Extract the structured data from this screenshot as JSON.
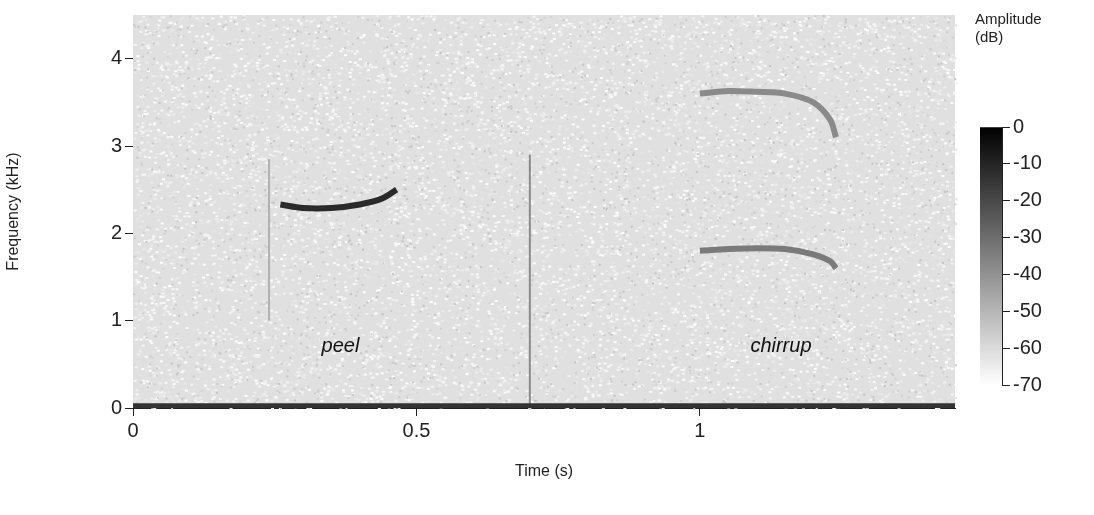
{
  "chart_data": {
    "type": "spectrogram",
    "x_label": "Time (s)",
    "y_label": "Frequency (kHz)",
    "xlim": [
      0,
      1.45
    ],
    "xticks": [
      0,
      0.5,
      1
    ],
    "ylim": [
      0,
      4.5
    ],
    "yticks": [
      0,
      1,
      2,
      3,
      4
    ],
    "grid": false,
    "series": [
      {
        "x": [
          0,
          1.45
        ],
        "values": [
          0.02,
          0.02
        ],
        "color": "#333333"
      },
      {
        "x": [
          0.24,
          0.24
        ],
        "values": [
          1.0,
          2.85
        ],
        "color": "#b0b0b0"
      },
      {
        "x": [
          0.26,
          0.3,
          0.35,
          0.4,
          0.44,
          0.465
        ],
        "values": [
          2.33,
          2.29,
          2.29,
          2.33,
          2.4,
          2.5
        ],
        "color": "#2a2a2a"
      },
      {
        "x": [
          0.7,
          0.7
        ],
        "values": [
          0,
          2.9
        ],
        "color": "#8a8a8a"
      },
      {
        "x": [
          1.0,
          1.05,
          1.1,
          1.15,
          1.2,
          1.23,
          1.24
        ],
        "values": [
          1.8,
          1.82,
          1.83,
          1.82,
          1.76,
          1.68,
          1.6
        ],
        "color": "#7a7a7a"
      },
      {
        "x": [
          1.0,
          1.05,
          1.1,
          1.15,
          1.2,
          1.23,
          1.24
        ],
        "values": [
          3.6,
          3.63,
          3.62,
          3.6,
          3.5,
          3.3,
          3.1
        ],
        "color": "#8a8a8a"
      }
    ],
    "annotations": [
      {
        "text": "peel",
        "x": 0.366,
        "y": 0.71
      },
      {
        "text": "chirrup",
        "x": 1.143,
        "y": 0.71
      }
    ],
    "color_bar": {
      "title": "Amplitude (dB)",
      "range": [
        -70,
        0
      ],
      "ticks": [
        0,
        -10,
        -20,
        -30,
        -40,
        -50,
        -60,
        -70
      ]
    }
  }
}
